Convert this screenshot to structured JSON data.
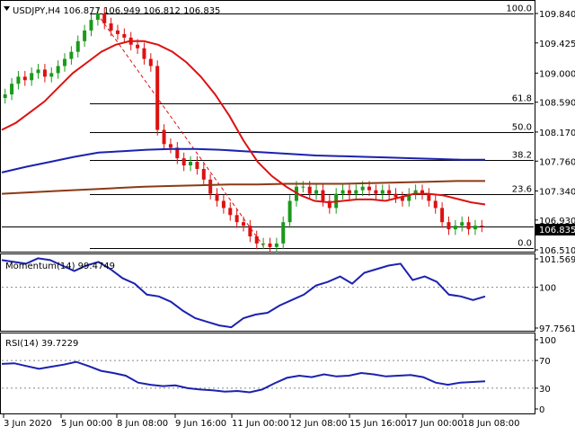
{
  "header": {
    "symbol_line": "USDJPY,H4  106.877 106.949 106.812 106.835",
    "collapse_arrow": "triangle-down-icon"
  },
  "colors": {
    "bull": "#1a9a1a",
    "bear": "#dd1111",
    "ma_fast": "#dd1111",
    "ma_mid": "#1c21b0",
    "ma_slow": "#8b3a14",
    "indicator": "#1c21b0",
    "fib_trend": "#dd1111",
    "price_box": "#000000"
  },
  "main_axis": {
    "ticks": [
      "109.840",
      "109.425",
      "109.000",
      "108.590",
      "108.170",
      "107.760",
      "107.340",
      "106.930",
      "106.510"
    ],
    "current_price": "106.835"
  },
  "fib_levels": [
    {
      "label": "100.0"
    },
    {
      "label": "61.8"
    },
    {
      "label": "50.0"
    },
    {
      "label": "38.2"
    },
    {
      "label": "23.6"
    },
    {
      "label": "0.0"
    }
  ],
  "momentum": {
    "title": "Momentum(14) 99.4749",
    "ticks": [
      "101.569",
      "100",
      "97.7561"
    ]
  },
  "rsi": {
    "title": "RSI(14) 39.7229",
    "ticks": [
      "100",
      "70",
      "30",
      "0"
    ]
  },
  "time_axis": {
    "labels": [
      "3 Jun 2020",
      "5 Jun 00:00",
      "8 Jun 08:00",
      "9 Jun 16:00",
      "11 Jun 00:00",
      "12 Jun 08:00",
      "15 Jun 16:00",
      "17 Jun 00:00",
      "18 Jun 08:00"
    ]
  },
  "chart_data": {
    "type": "candlestick",
    "symbol": "USDJPY",
    "timeframe": "H4",
    "ohlc_last": {
      "open": 106.877,
      "high": 106.949,
      "low": 106.812,
      "close": 106.835
    },
    "ylim": [
      106.51,
      109.84
    ],
    "closes": [
      108.7,
      108.85,
      108.95,
      108.9,
      109.0,
      109.05,
      108.95,
      109.0,
      109.1,
      109.2,
      109.3,
      109.45,
      109.6,
      109.75,
      109.84,
      109.7,
      109.6,
      109.55,
      109.5,
      109.4,
      109.35,
      109.2,
      109.1,
      108.2,
      108.0,
      107.95,
      107.8,
      107.7,
      107.75,
      107.65,
      107.5,
      107.3,
      107.2,
      107.1,
      107.0,
      106.9,
      106.85,
      106.7,
      106.6,
      106.6,
      106.55,
      106.6,
      106.9,
      107.2,
      107.4,
      107.4,
      107.3,
      107.35,
      107.2,
      107.1,
      107.3,
      107.35,
      107.3,
      107.35,
      107.4,
      107.35,
      107.3,
      107.35,
      107.3,
      107.25,
      107.2,
      107.3,
      107.35,
      107.3,
      107.2,
      107.1,
      106.9,
      106.8,
      106.85,
      106.9,
      106.8,
      106.85,
      106.84
    ],
    "ma_fast": [
      108.2,
      108.3,
      108.45,
      108.6,
      108.8,
      109.0,
      109.15,
      109.3,
      109.4,
      109.45,
      109.45,
      109.4,
      109.3,
      109.15,
      108.95,
      108.7,
      108.4,
      108.05,
      107.75,
      107.55,
      107.4,
      107.28,
      107.2,
      107.18,
      107.2,
      107.22,
      107.22,
      107.2,
      107.25,
      107.3,
      107.3,
      107.28,
      107.23,
      107.18,
      107.15
    ],
    "ma_mid": [
      107.6,
      107.68,
      107.75,
      107.82,
      107.88,
      107.9,
      107.92,
      107.93,
      107.93,
      107.92,
      107.9,
      107.88,
      107.86,
      107.84,
      107.83,
      107.82,
      107.81,
      107.8,
      107.79,
      107.78,
      107.78
    ],
    "ma_slow": [
      107.3,
      107.32,
      107.34,
      107.36,
      107.38,
      107.4,
      107.41,
      107.42,
      107.43,
      107.43,
      107.44,
      107.44,
      107.44,
      107.45,
      107.46,
      107.47,
      107.48,
      107.48
    ],
    "fibonacci": [
      {
        "level": "100.0",
        "price": 109.84
      },
      {
        "level": "61.8",
        "price": 108.58
      },
      {
        "level": "50.0",
        "price": 108.17
      },
      {
        "level": "38.2",
        "price": 107.78
      },
      {
        "level": "23.6",
        "price": 107.3
      },
      {
        "level": "0.0",
        "price": 106.53
      }
    ],
    "momentum_14": {
      "last": 99.4749,
      "ylim": [
        97.7561,
        101.569
      ],
      "values": [
        101.5,
        101.4,
        101.3,
        101.6,
        101.5,
        101.2,
        100.9,
        101.2,
        101.4,
        101.0,
        100.5,
        100.2,
        99.6,
        99.5,
        99.2,
        98.7,
        98.3,
        98.1,
        97.9,
        97.8,
        98.3,
        98.5,
        98.6,
        99.0,
        99.3,
        99.6,
        100.1,
        100.3,
        100.6,
        100.2,
        100.8,
        101.0,
        101.2,
        101.3,
        100.4,
        100.6,
        100.3,
        99.6,
        99.5,
        99.3,
        99.5
      ]
    },
    "rsi_14": {
      "last": 39.7229,
      "ylim": [
        0,
        100
      ],
      "values": [
        65,
        66,
        62,
        58,
        61,
        64,
        68,
        62,
        55,
        52,
        48,
        38,
        35,
        33,
        34,
        30,
        28,
        27,
        25,
        26,
        24,
        28,
        37,
        45,
        48,
        46,
        50,
        47,
        48,
        52,
        50,
        47,
        48,
        49,
        46,
        38,
        35,
        38,
        39,
        40
      ]
    },
    "xlabels": [
      "3 Jun 2020",
      "5 Jun 00:00",
      "8 Jun 08:00",
      "9 Jun 16:00",
      "11 Jun 00:00",
      "12 Jun 08:00",
      "15 Jun 16:00",
      "17 Jun 00:00",
      "18 Jun 08:00"
    ]
  }
}
